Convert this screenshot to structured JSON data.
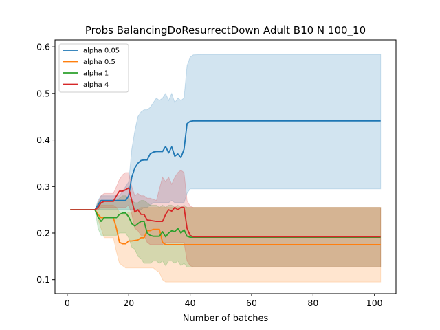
{
  "chart_data": {
    "type": "line",
    "title": "Probs BalancingDoResurrectDown Adult B10 N 100_10",
    "xlabel": "Number of batches",
    "ylabel": "",
    "xlim": [
      -4,
      107
    ],
    "ylim": [
      0.07,
      0.615
    ],
    "xticks": [
      0,
      20,
      40,
      60,
      80,
      100
    ],
    "yticks": [
      0.1,
      0.2,
      0.3,
      0.4,
      0.5,
      0.6
    ],
    "grid": false,
    "legend_position": "upper-left",
    "series": [
      {
        "name": "alpha 0.05",
        "color": "#1f77b4",
        "x": [
          1,
          9,
          10,
          11,
          12,
          17,
          19,
          20,
          21,
          22,
          23,
          24,
          25,
          26,
          27,
          28,
          29,
          30,
          31,
          32,
          33,
          34,
          35,
          36,
          37,
          38,
          39,
          40,
          41,
          45,
          102
        ],
        "mean": [
          0.25,
          0.25,
          0.26,
          0.27,
          0.27,
          0.27,
          0.27,
          0.28,
          0.32,
          0.34,
          0.35,
          0.356,
          0.357,
          0.357,
          0.37,
          0.374,
          0.375,
          0.375,
          0.375,
          0.386,
          0.372,
          0.385,
          0.365,
          0.37,
          0.362,
          0.38,
          0.435,
          0.44,
          0.441,
          0.441,
          0.441
        ],
        "lower": [
          0.25,
          0.25,
          0.25,
          0.25,
          0.25,
          0.25,
          0.25,
          0.25,
          0.25,
          0.25,
          0.25,
          0.25,
          0.255,
          0.255,
          0.26,
          0.265,
          0.265,
          0.265,
          0.265,
          0.265,
          0.265,
          0.27,
          0.265,
          0.265,
          0.265,
          0.265,
          0.285,
          0.295,
          0.295,
          0.295,
          0.295
        ],
        "upper": [
          0.25,
          0.25,
          0.27,
          0.28,
          0.28,
          0.28,
          0.3,
          0.31,
          0.38,
          0.42,
          0.45,
          0.46,
          0.465,
          0.465,
          0.47,
          0.48,
          0.49,
          0.485,
          0.49,
          0.5,
          0.485,
          0.5,
          0.48,
          0.49,
          0.485,
          0.49,
          0.56,
          0.578,
          0.583,
          0.584,
          0.584
        ]
      },
      {
        "name": "alpha 0.5",
        "color": "#ff7f0e",
        "x": [
          1,
          9,
          10,
          11,
          12,
          15,
          16,
          17,
          18,
          19,
          20,
          21,
          23,
          24,
          25,
          26,
          27,
          28,
          30,
          31,
          32,
          34,
          36,
          38,
          39,
          40,
          102
        ],
        "mean": [
          0.25,
          0.25,
          0.24,
          0.233,
          0.233,
          0.233,
          0.21,
          0.18,
          0.177,
          0.177,
          0.183,
          0.183,
          0.185,
          0.19,
          0.19,
          0.205,
          0.205,
          0.208,
          0.208,
          0.18,
          0.175,
          0.175,
          0.175,
          0.175,
          0.175,
          0.175,
          0.175
        ],
        "lower": [
          0.25,
          0.25,
          0.23,
          0.21,
          0.19,
          0.19,
          0.16,
          0.135,
          0.13,
          0.125,
          0.125,
          0.125,
          0.125,
          0.125,
          0.125,
          0.125,
          0.125,
          0.125,
          0.115,
          0.1,
          0.095,
          0.095,
          0.095,
          0.095,
          0.095,
          0.095,
          0.095
        ],
        "upper": [
          0.25,
          0.25,
          0.255,
          0.26,
          0.26,
          0.26,
          0.255,
          0.245,
          0.24,
          0.24,
          0.245,
          0.245,
          0.25,
          0.255,
          0.255,
          0.255,
          0.255,
          0.255,
          0.255,
          0.255,
          0.255,
          0.255,
          0.255,
          0.255,
          0.255,
          0.255,
          0.255
        ]
      },
      {
        "name": "alpha 1",
        "color": "#2ca02c",
        "x": [
          1,
          9,
          10,
          11,
          12,
          16,
          17,
          18,
          19,
          20,
          21,
          22,
          23,
          24,
          25,
          26,
          27,
          28,
          29,
          30,
          31,
          32,
          33,
          34,
          35,
          36,
          37,
          38,
          39,
          40,
          102
        ],
        "mean": [
          0.25,
          0.25,
          0.235,
          0.225,
          0.233,
          0.233,
          0.24,
          0.243,
          0.243,
          0.235,
          0.22,
          0.215,
          0.22,
          0.225,
          0.225,
          0.2,
          0.195,
          0.193,
          0.193,
          0.193,
          0.203,
          0.192,
          0.2,
          0.205,
          0.203,
          0.21,
          0.2,
          0.207,
          0.193,
          0.191,
          0.191
        ],
        "lower": [
          0.25,
          0.25,
          0.21,
          0.195,
          0.195,
          0.195,
          0.2,
          0.2,
          0.2,
          0.19,
          0.17,
          0.165,
          0.15,
          0.145,
          0.135,
          0.135,
          0.135,
          0.14,
          0.14,
          0.135,
          0.14,
          0.13,
          0.14,
          0.14,
          0.135,
          0.14,
          0.13,
          0.135,
          0.127,
          0.127,
          0.127
        ],
        "upper": [
          0.25,
          0.25,
          0.265,
          0.27,
          0.27,
          0.27,
          0.275,
          0.28,
          0.28,
          0.275,
          0.27,
          0.265,
          0.265,
          0.27,
          0.27,
          0.265,
          0.26,
          0.26,
          0.26,
          0.255,
          0.26,
          0.255,
          0.26,
          0.26,
          0.255,
          0.26,
          0.255,
          0.26,
          0.255,
          0.255,
          0.255
        ]
      },
      {
        "name": "alpha 4",
        "color": "#d62728",
        "x": [
          1,
          9,
          10,
          11,
          12,
          15,
          16,
          17,
          18,
          19,
          20,
          21,
          22,
          23,
          24,
          25,
          26,
          27,
          29,
          30,
          31,
          32,
          33,
          34,
          35,
          36,
          37,
          38,
          39,
          40,
          41,
          102
        ],
        "mean": [
          0.25,
          0.25,
          0.255,
          0.265,
          0.268,
          0.268,
          0.28,
          0.29,
          0.29,
          0.293,
          0.297,
          0.27,
          0.245,
          0.25,
          0.24,
          0.24,
          0.228,
          0.227,
          0.225,
          0.225,
          0.225,
          0.24,
          0.25,
          0.247,
          0.255,
          0.25,
          0.255,
          0.255,
          0.21,
          0.195,
          0.192,
          0.192
        ],
        "lower": [
          0.25,
          0.25,
          0.25,
          0.255,
          0.255,
          0.255,
          0.255,
          0.255,
          0.255,
          0.255,
          0.26,
          0.24,
          0.21,
          0.205,
          0.195,
          0.195,
          0.18,
          0.175,
          0.175,
          0.175,
          0.175,
          0.18,
          0.18,
          0.18,
          0.18,
          0.18,
          0.18,
          0.18,
          0.14,
          0.13,
          0.127,
          0.127
        ],
        "upper": [
          0.25,
          0.25,
          0.265,
          0.28,
          0.285,
          0.285,
          0.3,
          0.315,
          0.325,
          0.33,
          0.33,
          0.3,
          0.28,
          0.285,
          0.28,
          0.28,
          0.275,
          0.275,
          0.27,
          0.295,
          0.32,
          0.31,
          0.32,
          0.305,
          0.32,
          0.33,
          0.335,
          0.33,
          0.27,
          0.258,
          0.255,
          0.255
        ]
      }
    ]
  }
}
